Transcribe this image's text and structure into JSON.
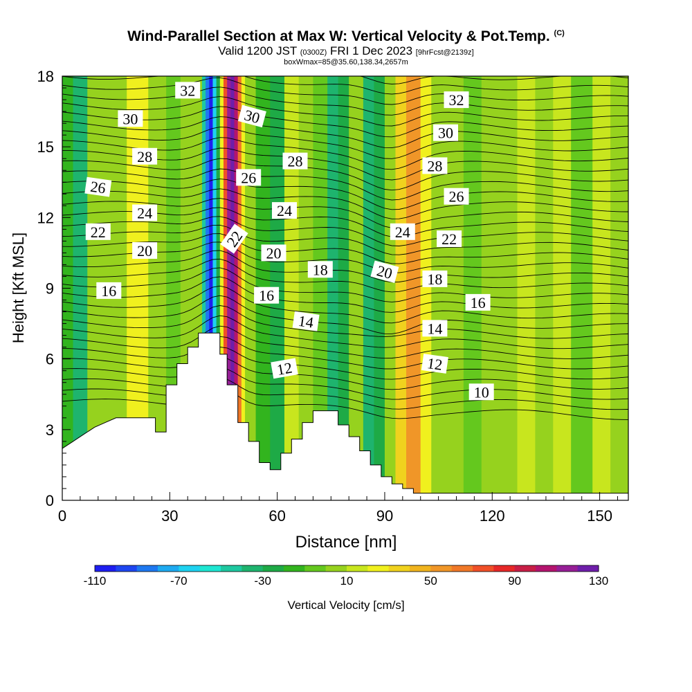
{
  "title": {
    "main": "Wind-Parallel Section at Max W: Vertical Velocity & Pot.Temp.",
    "copyright": "(C)",
    "valid_prefix": "Valid 1200 JST",
    "valid_utc": "(0300Z)",
    "valid_date": "FRI 1 Dec 2023",
    "forecast": "[9hrFcst@2139z]",
    "boxwmax": "boxWmax=85@35.60,138.34,2657m"
  },
  "chart_data": {
    "type": "contour-section",
    "xlabel": "Distance [nm]",
    "ylabel": "Height [Kft MSL]",
    "xlim": [
      0,
      158
    ],
    "ylim": [
      0,
      18
    ],
    "x_ticks": [
      0,
      30,
      60,
      90,
      120,
      150
    ],
    "y_ticks": [
      0,
      3,
      6,
      9,
      12,
      15,
      18
    ],
    "x_tick_labels": [
      "0",
      "30",
      "60",
      "90",
      "120",
      "150"
    ],
    "y_tick_labels": [
      "0",
      "3",
      "6",
      "9",
      "12",
      "15",
      "18"
    ],
    "colorbar": {
      "label": "Vertical Velocity [cm/s]",
      "min": -110,
      "max": 130,
      "step": 10,
      "tick_values": [
        -110,
        -70,
        -30,
        10,
        50,
        90,
        130
      ],
      "tick_labels": [
        "-110",
        "-70",
        "-30",
        "10",
        "50",
        "90",
        "130"
      ],
      "colors": [
        "#1e1ef0",
        "#1e46f0",
        "#1e78f0",
        "#1eaaf0",
        "#1ed2f0",
        "#1ee6d2",
        "#1ec8a0",
        "#1eb46e",
        "#1eaa46",
        "#32b41e",
        "#64c81e",
        "#96d21e",
        "#c8e61e",
        "#f0f01e",
        "#f0d21e",
        "#f0b41e",
        "#f09628",
        "#f07828",
        "#f05028",
        "#e62828",
        "#c81e46",
        "#b4146e",
        "#961e96",
        "#6e1eaa"
      ]
    },
    "vertical_velocity_columns": [
      {
        "x": [
          0,
          3
        ],
        "w": -20
      },
      {
        "x": [
          3,
          7
        ],
        "w": -35
      },
      {
        "x": [
          7,
          12
        ],
        "w": 0
      },
      {
        "x": [
          12,
          18
        ],
        "w": 5
      },
      {
        "x": [
          18,
          24
        ],
        "w": 25
      },
      {
        "x": [
          24,
          29
        ],
        "w": 8
      },
      {
        "x": [
          29,
          33
        ],
        "w": -10
      },
      {
        "x": [
          33,
          37
        ],
        "w": 0
      },
      {
        "x": [
          37,
          39
        ],
        "w": 5
      },
      {
        "x": [
          39,
          40
        ],
        "w": -50
      },
      {
        "x": [
          40,
          41
        ],
        "w": -90
      },
      {
        "x": [
          41,
          42
        ],
        "w": -110
      },
      {
        "x": [
          42,
          43
        ],
        "w": -70
      },
      {
        "x": [
          43,
          44
        ],
        "w": -30
      },
      {
        "x": [
          44,
          45
        ],
        "w": 20
      },
      {
        "x": [
          45,
          46
        ],
        "w": 70
      },
      {
        "x": [
          46,
          47
        ],
        "w": 110
      },
      {
        "x": [
          47,
          48
        ],
        "w": 130
      },
      {
        "x": [
          48,
          49
        ],
        "w": 100
      },
      {
        "x": [
          49,
          50
        ],
        "w": 60
      },
      {
        "x": [
          50,
          51
        ],
        "w": 20
      },
      {
        "x": [
          51,
          54
        ],
        "w": 0
      },
      {
        "x": [
          54,
          58
        ],
        "w": -15
      },
      {
        "x": [
          58,
          62
        ],
        "w": -30
      },
      {
        "x": [
          62,
          66
        ],
        "w": 10
      },
      {
        "x": [
          66,
          70
        ],
        "w": 5
      },
      {
        "x": [
          70,
          74
        ],
        "w": -5
      },
      {
        "x": [
          74,
          77
        ],
        "w": -40
      },
      {
        "x": [
          77,
          80
        ],
        "w": -30
      },
      {
        "x": [
          80,
          84
        ],
        "w": 0
      },
      {
        "x": [
          84,
          87
        ],
        "w": -35
      },
      {
        "x": [
          87,
          90
        ],
        "w": -25
      },
      {
        "x": [
          90,
          93
        ],
        "w": 0
      },
      {
        "x": [
          93,
          96
        ],
        "w": 30
      },
      {
        "x": [
          96,
          100
        ],
        "w": 55
      },
      {
        "x": [
          100,
          103
        ],
        "w": 25
      },
      {
        "x": [
          103,
          107
        ],
        "w": 5
      },
      {
        "x": [
          107,
          112
        ],
        "w": 0
      },
      {
        "x": [
          112,
          117
        ],
        "w": -10
      },
      {
        "x": [
          117,
          122
        ],
        "w": 5
      },
      {
        "x": [
          122,
          127
        ],
        "w": 0
      },
      {
        "x": [
          127,
          132
        ],
        "w": 10
      },
      {
        "x": [
          132,
          137
        ],
        "w": 0
      },
      {
        "x": [
          137,
          142
        ],
        "w": 15
      },
      {
        "x": [
          142,
          148
        ],
        "w": -5
      },
      {
        "x": [
          148,
          153
        ],
        "w": 10
      },
      {
        "x": [
          153,
          158
        ],
        "w": 0
      }
    ],
    "terrain": [
      [
        0,
        2.2
      ],
      [
        3,
        2.5
      ],
      [
        6,
        2.8
      ],
      [
        9,
        3.1
      ],
      [
        12,
        3.3
      ],
      [
        15,
        3.5
      ],
      [
        26,
        3.5
      ],
      [
        26,
        2.9
      ],
      [
        29,
        2.9
      ],
      [
        29,
        4.9
      ],
      [
        32,
        4.9
      ],
      [
        32,
        5.8
      ],
      [
        35,
        5.8
      ],
      [
        35,
        6.5
      ],
      [
        38,
        6.5
      ],
      [
        38,
        7.1
      ],
      [
        44,
        7.1
      ],
      [
        44,
        6.2
      ],
      [
        46,
        6.2
      ],
      [
        46,
        4.9
      ],
      [
        49,
        4.9
      ],
      [
        49,
        3.3
      ],
      [
        52,
        3.3
      ],
      [
        52,
        2.5
      ],
      [
        55,
        2.5
      ],
      [
        55,
        1.6
      ],
      [
        58,
        1.6
      ],
      [
        58,
        1.3
      ],
      [
        61,
        1.3
      ],
      [
        61,
        2.0
      ],
      [
        64,
        2.0
      ],
      [
        64,
        2.6
      ],
      [
        67,
        2.6
      ],
      [
        67,
        3.3
      ],
      [
        70,
        3.3
      ],
      [
        70,
        3.8
      ],
      [
        77,
        3.8
      ],
      [
        77,
        3.2
      ],
      [
        80,
        3.2
      ],
      [
        80,
        2.7
      ],
      [
        83,
        2.7
      ],
      [
        83,
        2.1
      ],
      [
        86,
        2.1
      ],
      [
        86,
        1.5
      ],
      [
        89,
        1.5
      ],
      [
        89,
        1.0
      ],
      [
        92,
        1.0
      ],
      [
        92,
        0.7
      ],
      [
        95,
        0.7
      ],
      [
        95,
        0.5
      ],
      [
        98,
        0.5
      ],
      [
        98,
        0.3
      ],
      [
        158,
        0.3
      ]
    ],
    "theta_contour_labels": [
      {
        "text": "32",
        "x": 35,
        "y": 17.4,
        "rot": 0
      },
      {
        "text": "32",
        "x": 110,
        "y": 17.0,
        "rot": 0
      },
      {
        "text": "30",
        "x": 19,
        "y": 16.2,
        "rot": 0
      },
      {
        "text": "30",
        "x": 53,
        "y": 16.3,
        "rot": 15
      },
      {
        "text": "30",
        "x": 107,
        "y": 15.6,
        "rot": 0
      },
      {
        "text": "28",
        "x": 23,
        "y": 14.6,
        "rot": 0
      },
      {
        "text": "28",
        "x": 65,
        "y": 14.4,
        "rot": 0
      },
      {
        "text": "28",
        "x": 104,
        "y": 14.2,
        "rot": 0
      },
      {
        "text": "26",
        "x": 10,
        "y": 13.3,
        "rot": 8
      },
      {
        "text": "26",
        "x": 52,
        "y": 13.7,
        "rot": 0
      },
      {
        "text": "26",
        "x": 110,
        "y": 12.9,
        "rot": 0
      },
      {
        "text": "24",
        "x": 23,
        "y": 12.2,
        "rot": 0
      },
      {
        "text": "24",
        "x": 62,
        "y": 12.3,
        "rot": 0
      },
      {
        "text": "24",
        "x": 95,
        "y": 11.4,
        "rot": 0
      },
      {
        "text": "22",
        "x": 10,
        "y": 11.4,
        "rot": 0
      },
      {
        "text": "22",
        "x": 48,
        "y": 11.1,
        "rot": -55
      },
      {
        "text": "22",
        "x": 108,
        "y": 11.1,
        "rot": 0
      },
      {
        "text": "20",
        "x": 23,
        "y": 10.6,
        "rot": 0
      },
      {
        "text": "20",
        "x": 59,
        "y": 10.5,
        "rot": 0
      },
      {
        "text": "20",
        "x": 90,
        "y": 9.7,
        "rot": 15
      },
      {
        "text": "18",
        "x": 72,
        "y": 9.8,
        "rot": 0
      },
      {
        "text": "18",
        "x": 104,
        "y": 9.4,
        "rot": 0
      },
      {
        "text": "16",
        "x": 13,
        "y": 8.9,
        "rot": 0
      },
      {
        "text": "16",
        "x": 57,
        "y": 8.7,
        "rot": 0
      },
      {
        "text": "16",
        "x": 116,
        "y": 8.4,
        "rot": 0
      },
      {
        "text": "14",
        "x": 68,
        "y": 7.6,
        "rot": 8
      },
      {
        "text": "14",
        "x": 104,
        "y": 7.3,
        "rot": 0
      },
      {
        "text": "12",
        "x": 62,
        "y": 5.6,
        "rot": -10
      },
      {
        "text": "12",
        "x": 104,
        "y": 5.8,
        "rot": 8
      },
      {
        "text": "10",
        "x": 117,
        "y": 4.6,
        "rot": 0
      }
    ]
  }
}
